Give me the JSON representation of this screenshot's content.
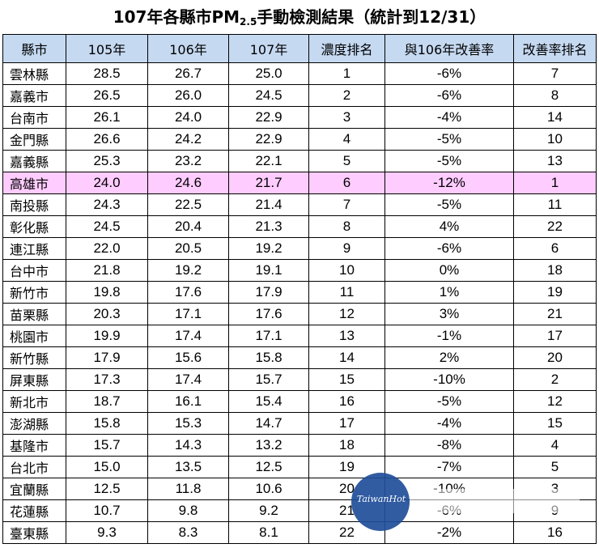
{
  "title": {
    "prefix": "107年各縣市PM",
    "subscript": "2.5",
    "suffix": "手動檢測結果（統計到12/31）"
  },
  "columns": [
    "縣市",
    "105年",
    "106年",
    "107年",
    "濃度排名",
    "與106年改善率",
    "改善率排名"
  ],
  "rows": [
    {
      "county": "雲林縣",
      "y105": "28.5",
      "y106": "26.7",
      "y107": "25.0",
      "rank": "1",
      "rate": "-6%",
      "rate_rank": "7"
    },
    {
      "county": "嘉義市",
      "y105": "26.5",
      "y106": "26.0",
      "y107": "24.5",
      "rank": "2",
      "rate": "-6%",
      "rate_rank": "8"
    },
    {
      "county": "台南市",
      "y105": "26.1",
      "y106": "24.0",
      "y107": "22.9",
      "rank": "3",
      "rate": "-4%",
      "rate_rank": "14"
    },
    {
      "county": "金門縣",
      "y105": "26.6",
      "y106": "24.2",
      "y107": "22.9",
      "rank": "4",
      "rate": "-5%",
      "rate_rank": "10"
    },
    {
      "county": "嘉義縣",
      "y105": "25.3",
      "y106": "23.2",
      "y107": "22.1",
      "rank": "5",
      "rate": "-5%",
      "rate_rank": "13"
    },
    {
      "county": "高雄市",
      "y105": "24.0",
      "y106": "24.6",
      "y107": "21.7",
      "rank": "6",
      "rate": "-12%",
      "rate_rank": "1",
      "highlight": true
    },
    {
      "county": "南投縣",
      "y105": "24.3",
      "y106": "22.5",
      "y107": "21.4",
      "rank": "7",
      "rate": "-5%",
      "rate_rank": "11"
    },
    {
      "county": "彰化縣",
      "y105": "24.5",
      "y106": "20.4",
      "y107": "21.3",
      "rank": "8",
      "rate": "4%",
      "rate_rank": "22"
    },
    {
      "county": "連江縣",
      "y105": "22.0",
      "y106": "20.5",
      "y107": "19.2",
      "rank": "9",
      "rate": "-6%",
      "rate_rank": "6"
    },
    {
      "county": "台中市",
      "y105": "21.8",
      "y106": "19.2",
      "y107": "19.1",
      "rank": "10",
      "rate": "0%",
      "rate_rank": "18"
    },
    {
      "county": "新竹市",
      "y105": "19.8",
      "y106": "17.6",
      "y107": "17.9",
      "rank": "11",
      "rate": "1%",
      "rate_rank": "19"
    },
    {
      "county": "苗栗縣",
      "y105": "20.3",
      "y106": "17.1",
      "y107": "17.6",
      "rank": "12",
      "rate": "3%",
      "rate_rank": "21"
    },
    {
      "county": "桃園市",
      "y105": "19.9",
      "y106": "17.4",
      "y107": "17.1",
      "rank": "13",
      "rate": "-1%",
      "rate_rank": "17"
    },
    {
      "county": "新竹縣",
      "y105": "17.9",
      "y106": "15.6",
      "y107": "15.8",
      "rank": "14",
      "rate": "2%",
      "rate_rank": "20"
    },
    {
      "county": "屏東縣",
      "y105": "17.3",
      "y106": "17.4",
      "y107": "15.7",
      "rank": "15",
      "rate": "-10%",
      "rate_rank": "2"
    },
    {
      "county": "新北市",
      "y105": "18.7",
      "y106": "16.1",
      "y107": "15.4",
      "rank": "16",
      "rate": "-5%",
      "rate_rank": "12"
    },
    {
      "county": "澎湖縣",
      "y105": "15.8",
      "y106": "15.3",
      "y107": "14.7",
      "rank": "17",
      "rate": "-4%",
      "rate_rank": "15"
    },
    {
      "county": "基隆市",
      "y105": "15.7",
      "y106": "14.3",
      "y107": "13.2",
      "rank": "18",
      "rate": "-8%",
      "rate_rank": "4"
    },
    {
      "county": "台北市",
      "y105": "15.0",
      "y106": "13.5",
      "y107": "12.5",
      "rank": "19",
      "rate": "-7%",
      "rate_rank": "5"
    },
    {
      "county": "宜蘭縣",
      "y105": "12.5",
      "y106": "11.8",
      "y107": "10.6",
      "rank": "20",
      "rate": "-10%",
      "rate_rank": "3"
    },
    {
      "county": "花蓮縣",
      "y105": "10.7",
      "y106": "9.8",
      "y107": "9.2",
      "rank": "21",
      "rate": "-6%",
      "rate_rank": "9"
    },
    {
      "county": "臺東縣",
      "y105": "9.3",
      "y106": "8.3",
      "y107": "8.1",
      "rank": "22",
      "rate": "-2%",
      "rate_rank": "16"
    }
  ],
  "watermark": {
    "text": "TaiwanHot"
  },
  "colors": {
    "header_bg": "#c5d9f1",
    "highlight_bg": "#ffccff",
    "watermark_circle": "#1f4e9a"
  }
}
